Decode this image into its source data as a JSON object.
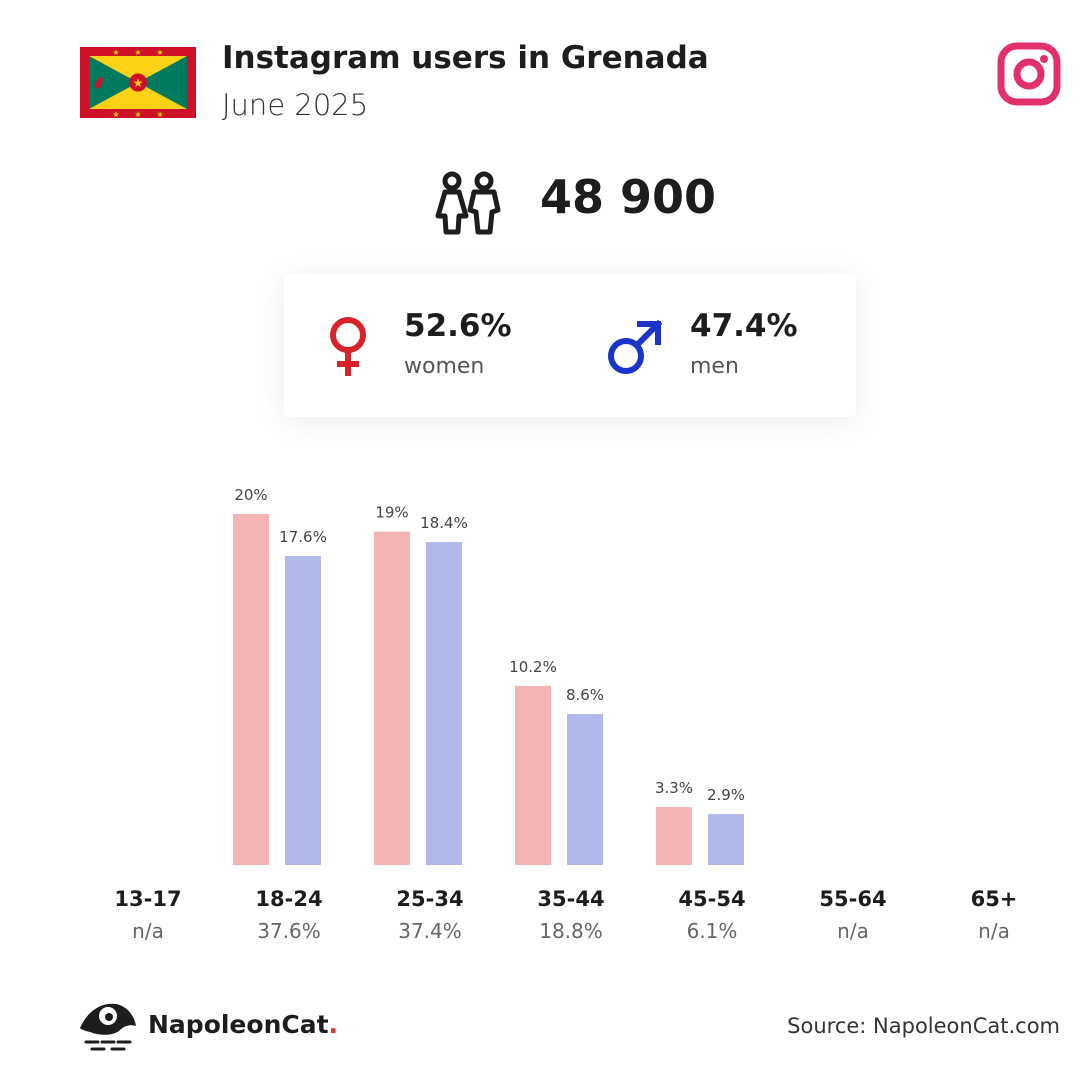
{
  "header": {
    "title": "Instagram users in Grenada",
    "subtitle": "June 2025"
  },
  "icons": {
    "flag": "grenada-flag-icon",
    "platform": "instagram-icon",
    "people": "people-icon",
    "female": "female-symbol-icon",
    "male": "male-symbol-icon",
    "brand": "napoleoncat-logo-icon"
  },
  "summary": {
    "total_users": "48 900",
    "women": {
      "percent": "52.6%",
      "label": "women"
    },
    "men": {
      "percent": "47.4%",
      "label": "men"
    }
  },
  "colors": {
    "women_bar": "#f4b4b6",
    "men_bar": "#b0b9ea",
    "female_icon": "#d8232a",
    "male_icon": "#1a33c8",
    "instagram": "#e1306c",
    "brand_dot": "#e4322b"
  },
  "chart_data": {
    "type": "bar",
    "categories": [
      "13-17",
      "18-24",
      "25-34",
      "35-44",
      "45-54",
      "55-64",
      "65+"
    ],
    "category_totals": [
      "n/a",
      "37.6%",
      "37.4%",
      "18.8%",
      "6.1%",
      "n/a",
      "n/a"
    ],
    "series": [
      {
        "key": "women",
        "values": [
          null,
          20,
          19,
          10.2,
          3.3,
          null,
          null
        ],
        "labels": [
          "",
          "20%",
          "19%",
          "10.2%",
          "3.3%",
          "",
          ""
        ]
      },
      {
        "key": "men",
        "values": [
          null,
          17.6,
          18.4,
          8.6,
          2.9,
          null,
          null
        ],
        "labels": [
          "",
          "17.6%",
          "18.4%",
          "8.6%",
          "2.9%",
          "",
          ""
        ]
      }
    ],
    "ylim": [
      0,
      20
    ]
  },
  "footer": {
    "brand_name": "NapoleonCat",
    "brand_dot": ".",
    "source": "Source: NapoleonCat.com"
  }
}
